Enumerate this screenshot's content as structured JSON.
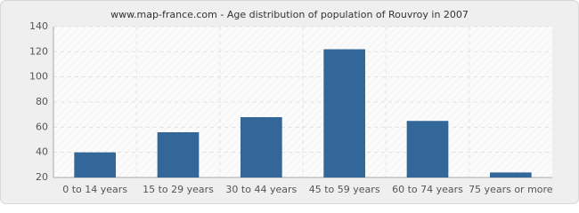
{
  "chart_data": {
    "type": "bar",
    "title": "www.map-france.com - Age distribution of population of Rouvroy in 2007",
    "categories": [
      "0 to 14 years",
      "15 to 29 years",
      "30 to 44 years",
      "45 to 59 years",
      "60 to 74 years",
      "75 years or more"
    ],
    "values": [
      40,
      56,
      68,
      122,
      65,
      24
    ],
    "color": "#336699",
    "ylim": [
      20,
      140
    ],
    "yticks": [
      20,
      40,
      60,
      80,
      100,
      120,
      140
    ],
    "grid": true
  }
}
